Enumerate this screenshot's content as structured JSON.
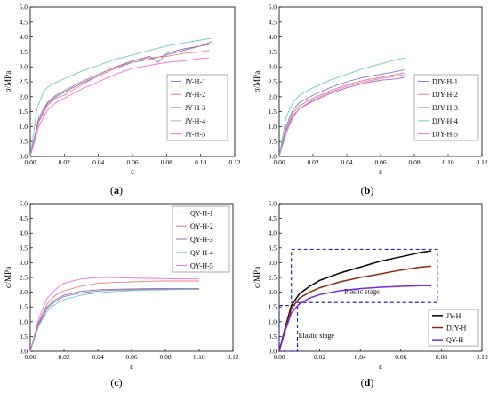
{
  "chart_data": [
    {
      "type": "line",
      "panel": "(a)",
      "caption_letter": "a",
      "xlabel": "ε",
      "ylabel": "σ/MPa",
      "xlim": [
        0,
        0.12
      ],
      "ylim": [
        0,
        5.0
      ],
      "xticks": [
        "0.00",
        "0.02",
        "0.04",
        "0.06",
        "0.08",
        "0.10",
        "0.12"
      ],
      "yticks": [
        "0.0",
        "0.5",
        "1.0",
        "1.5",
        "2.0",
        "2.5",
        "3.0",
        "3.5",
        "4.0",
        "4.5",
        "5.0"
      ],
      "legend_position": "center-right",
      "series": [
        {
          "name": "JY-H-1",
          "color": "#8080c0",
          "x": [
            0,
            0.005,
            0.01,
            0.015,
            0.02,
            0.03,
            0.04,
            0.05,
            0.06,
            0.07,
            0.08,
            0.09,
            0.1,
            0.105
          ],
          "y": [
            0,
            1.2,
            1.75,
            2.0,
            2.15,
            2.45,
            2.7,
            2.95,
            3.15,
            3.25,
            3.4,
            3.55,
            3.7,
            3.75
          ]
        },
        {
          "name": "JY-H-2",
          "color": "#e88080",
          "x": [
            0,
            0.005,
            0.01,
            0.015,
            0.02,
            0.03,
            0.04,
            0.05,
            0.06,
            0.07,
            0.08,
            0.09,
            0.1,
            0.105
          ],
          "y": [
            0,
            1.15,
            1.7,
            1.95,
            2.05,
            2.4,
            2.7,
            2.95,
            3.2,
            3.3,
            3.35,
            3.45,
            3.5,
            3.55
          ]
        },
        {
          "name": "JY-H-3",
          "color": "#a06ca8",
          "x": [
            0,
            0.005,
            0.01,
            0.015,
            0.02,
            0.03,
            0.04,
            0.05,
            0.06,
            0.07,
            0.075,
            0.08,
            0.09,
            0.1,
            0.107
          ],
          "y": [
            0,
            1.3,
            1.8,
            2.05,
            2.2,
            2.5,
            2.75,
            3.0,
            3.2,
            3.35,
            3.15,
            3.45,
            3.6,
            3.7,
            3.85
          ]
        },
        {
          "name": "JY-H-4",
          "color": "#70c8c8",
          "x": [
            0,
            0.004,
            0.008,
            0.012,
            0.02,
            0.03,
            0.04,
            0.05,
            0.06,
            0.07,
            0.08,
            0.09,
            0.1,
            0.106
          ],
          "y": [
            0,
            1.6,
            2.2,
            2.4,
            2.6,
            2.85,
            3.05,
            3.25,
            3.4,
            3.55,
            3.7,
            3.8,
            3.9,
            3.95
          ]
        },
        {
          "name": "JY-H-5",
          "color": "#f070e0",
          "x": [
            0,
            0.005,
            0.01,
            0.015,
            0.02,
            0.03,
            0.04,
            0.05,
            0.06,
            0.07,
            0.08,
            0.09,
            0.1,
            0.105
          ],
          "y": [
            0,
            1.0,
            1.55,
            1.8,
            1.95,
            2.25,
            2.5,
            2.75,
            2.95,
            3.05,
            3.15,
            3.2,
            3.28,
            3.3
          ]
        }
      ]
    },
    {
      "type": "line",
      "panel": "(b)",
      "caption_letter": "b",
      "xlabel": "ε",
      "ylabel": "σ/MPa",
      "xlim": [
        0,
        0.12
      ],
      "ylim": [
        0,
        5.0
      ],
      "xticks": [
        "0.00",
        "0.02",
        "0.04",
        "0.06",
        "0.08",
        "0.10",
        "0.12"
      ],
      "yticks": [
        "0.0",
        "0.5",
        "1.0",
        "1.5",
        "2.0",
        "2.5",
        "3.0",
        "3.5",
        "4.0",
        "4.5",
        "5.0"
      ],
      "legend_position": "center-right",
      "series": [
        {
          "name": "DJY-H-1",
          "color": "#8080c0",
          "x": [
            0,
            0.004,
            0.008,
            0.012,
            0.02,
            0.03,
            0.04,
            0.05,
            0.06,
            0.07,
            0.074
          ],
          "y": [
            0,
            1.0,
            1.55,
            1.8,
            2.05,
            2.3,
            2.5,
            2.65,
            2.75,
            2.85,
            2.9
          ]
        },
        {
          "name": "DJY-H-2",
          "color": "#e88080",
          "x": [
            0,
            0.004,
            0.008,
            0.012,
            0.02,
            0.03,
            0.04,
            0.05,
            0.06,
            0.07,
            0.074
          ],
          "y": [
            0,
            0.9,
            1.45,
            1.7,
            1.95,
            2.2,
            2.4,
            2.55,
            2.65,
            2.75,
            2.8
          ]
        },
        {
          "name": "DJY-H-3",
          "color": "#a06ca8",
          "x": [
            0,
            0.004,
            0.008,
            0.012,
            0.02,
            0.03,
            0.04,
            0.05,
            0.06,
            0.07,
            0.074
          ],
          "y": [
            0,
            0.85,
            1.35,
            1.6,
            1.85,
            2.1,
            2.3,
            2.45,
            2.55,
            2.6,
            2.65
          ]
        },
        {
          "name": "DJY-H-4",
          "color": "#70c8c8",
          "x": [
            0,
            0.004,
            0.008,
            0.012,
            0.02,
            0.03,
            0.04,
            0.05,
            0.06,
            0.07,
            0.075
          ],
          "y": [
            0,
            1.3,
            1.8,
            2.05,
            2.3,
            2.55,
            2.75,
            2.95,
            3.1,
            3.25,
            3.3
          ]
        },
        {
          "name": "DJY-H-5",
          "color": "#f070e0",
          "x": [
            0,
            0.004,
            0.008,
            0.012,
            0.02,
            0.03,
            0.04,
            0.05,
            0.06,
            0.07,
            0.074
          ],
          "y": [
            0,
            0.75,
            1.3,
            1.6,
            1.9,
            2.15,
            2.35,
            2.5,
            2.6,
            2.7,
            2.75
          ]
        }
      ]
    },
    {
      "type": "line",
      "panel": "(c)",
      "caption_letter": "c",
      "xlabel": "ε",
      "ylabel": "σ/MPa",
      "xlim": [
        0,
        0.12
      ],
      "ylim": [
        0,
        5.0
      ],
      "xticks": [
        "0.00",
        "0.02",
        "0.04",
        "0.06",
        "0.08",
        "0.10",
        "0.12"
      ],
      "yticks": [
        "0.0",
        "0.5",
        "1.0",
        "1.5",
        "2.0",
        "2.5",
        "3.0",
        "3.5",
        "4.0",
        "4.5",
        "5.0"
      ],
      "legend_position": "top-right",
      "series": [
        {
          "name": "QY-H-1",
          "color": "#8080c0",
          "x": [
            0,
            0.005,
            0.01,
            0.015,
            0.02,
            0.03,
            0.04,
            0.05,
            0.06,
            0.07,
            0.08,
            0.09,
            0.1
          ],
          "y": [
            0,
            0.9,
            1.45,
            1.7,
            1.85,
            1.98,
            2.04,
            2.07,
            2.08,
            2.09,
            2.1,
            2.1,
            2.1
          ]
        },
        {
          "name": "QY-H-2",
          "color": "#e88080",
          "x": [
            0,
            0.005,
            0.01,
            0.015,
            0.02,
            0.03,
            0.04,
            0.05,
            0.06,
            0.07,
            0.08,
            0.09,
            0.1
          ],
          "y": [
            0,
            1.0,
            1.6,
            1.9,
            2.05,
            2.2,
            2.3,
            2.33,
            2.35,
            2.37,
            2.38,
            2.38,
            2.38
          ]
        },
        {
          "name": "QY-H-3",
          "color": "#a06ca8",
          "x": [
            0,
            0.005,
            0.01,
            0.015,
            0.02,
            0.03,
            0.04,
            0.05,
            0.06,
            0.07,
            0.08,
            0.09,
            0.1
          ],
          "y": [
            0,
            0.95,
            1.5,
            1.75,
            1.9,
            2.03,
            2.08,
            2.1,
            2.11,
            2.12,
            2.12,
            2.12,
            2.12
          ]
        },
        {
          "name": "QY-H-4",
          "color": "#70c8c8",
          "x": [
            0,
            0.005,
            0.01,
            0.015,
            0.02,
            0.03,
            0.04,
            0.05,
            0.06,
            0.07,
            0.08,
            0.09,
            0.1
          ],
          "y": [
            0,
            0.85,
            1.35,
            1.6,
            1.75,
            1.9,
            1.98,
            2.02,
            2.05,
            2.07,
            2.08,
            2.09,
            2.1
          ]
        },
        {
          "name": "QY-H-5",
          "color": "#f070e0",
          "x": [
            0,
            0.005,
            0.01,
            0.015,
            0.02,
            0.03,
            0.04,
            0.05,
            0.06,
            0.07,
            0.08,
            0.09,
            0.1
          ],
          "y": [
            0,
            1.1,
            1.8,
            2.1,
            2.3,
            2.45,
            2.5,
            2.5,
            2.48,
            2.47,
            2.46,
            2.45,
            2.45
          ]
        }
      ]
    },
    {
      "type": "line",
      "panel": "(d)",
      "caption_letter": "d",
      "xlabel": "ε",
      "ylabel": "σ/MPa",
      "xlim": [
        0,
        0.1
      ],
      "ylim": [
        0,
        5.0
      ],
      "xticks": [
        "0.00",
        "0.02",
        "0.04",
        "0.06",
        "0.08",
        "0.10"
      ],
      "yticks": [
        "0.0",
        "0.5",
        "1.0",
        "1.5",
        "2.0",
        "2.5",
        "3.0",
        "3.5",
        "4.0",
        "4.5",
        "5.0"
      ],
      "legend_position": "bottom-right",
      "annotations": [
        "Plastic stage",
        "Elastic stage"
      ],
      "annotation_color": "#2a2ab8",
      "series": [
        {
          "name": "JY-H",
          "color": "#000000",
          "x": [
            0,
            0.003,
            0.006,
            0.01,
            0.015,
            0.02,
            0.03,
            0.04,
            0.05,
            0.06,
            0.07,
            0.075
          ],
          "y": [
            0,
            0.8,
            1.55,
            1.95,
            2.2,
            2.4,
            2.65,
            2.85,
            3.05,
            3.2,
            3.35,
            3.4
          ]
        },
        {
          "name": "DJY-H",
          "color": "#8b2a10",
          "x": [
            0,
            0.003,
            0.006,
            0.01,
            0.015,
            0.02,
            0.03,
            0.04,
            0.05,
            0.06,
            0.07,
            0.075
          ],
          "y": [
            0,
            0.75,
            1.45,
            1.8,
            2.0,
            2.15,
            2.35,
            2.5,
            2.62,
            2.75,
            2.85,
            2.88
          ]
        },
        {
          "name": "QY-H",
          "color": "#7a28d8",
          "x": [
            0,
            0.003,
            0.006,
            0.01,
            0.015,
            0.02,
            0.03,
            0.04,
            0.05,
            0.06,
            0.07,
            0.075
          ],
          "y": [
            0,
            0.7,
            1.3,
            1.6,
            1.8,
            1.92,
            2.05,
            2.12,
            2.17,
            2.2,
            2.22,
            2.22
          ]
        }
      ]
    }
  ]
}
